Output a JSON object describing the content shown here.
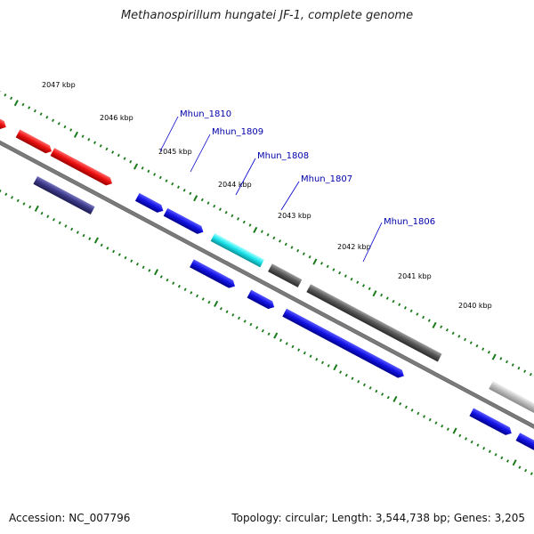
{
  "title": "Methanospirillum hungatei JF-1, complete genome",
  "footer": {
    "accession": "Accession: NC_007796",
    "summary": "Topology: circular; Length: 3,544,738 bp; Genes: 3,205"
  },
  "colors": {
    "red": "#ee1111",
    "navy": "#3c3a8a",
    "blue": "#1414e6",
    "cyan": "#1ee6ee",
    "darkgray": "#5a5a5a",
    "lightgray": "#bdbdbd",
    "backbone": "#7a7a7a",
    "ticks": "#1a7a1a",
    "label": "#0000aa"
  },
  "scale": {
    "kbp_labels": [
      "2047 kbp",
      "2046 kbp",
      "2045 kbp",
      "2044 kbp",
      "2043 kbp",
      "2042 kbp",
      "2041 kbp",
      "2040 kbp"
    ]
  },
  "gene_labels": [
    "Mhun_1810",
    "Mhun_1809",
    "Mhun_1808",
    "Mhun_1807",
    "Mhun_1806"
  ]
}
